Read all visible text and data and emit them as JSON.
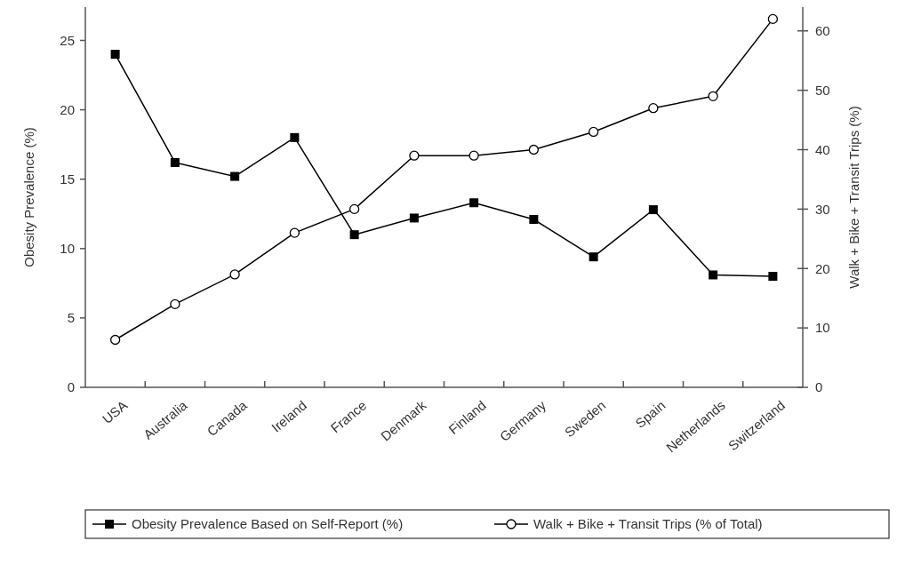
{
  "chart_data": {
    "type": "line",
    "categories": [
      "USA",
      "Australia",
      "Canada",
      "Ireland",
      "France",
      "Denmark",
      "Finland",
      "Germany",
      "Sweden",
      "Spain",
      "Netherlands",
      "Switzerland"
    ],
    "ylabel": "Obesity Prevalence (%)",
    "y2label": "Walk + Bike + Transit Trips (%)",
    "ylim": [
      0,
      27.4
    ],
    "yticks": [
      0,
      5,
      10,
      15,
      20,
      25
    ],
    "y2lim": [
      0,
      64
    ],
    "y2ticks": [
      0,
      10,
      20,
      30,
      40,
      50,
      60
    ],
    "legend": "bottom",
    "grid": false,
    "series": [
      {
        "name": "Obesity Prevalence Based on Self-Report (%)",
        "color": "#000000",
        "marker": "square",
        "values": [
          24,
          16.2,
          15.2,
          18,
          11,
          12.2,
          13.3,
          12.1,
          9.4,
          12.8,
          8.1,
          8
        ]
      },
      {
        "name": "Walk + Bike + Transit Trips (% of Total)",
        "color": "#000000",
        "marker": "circle",
        "axis": "y2",
        "values": [
          8,
          14,
          19,
          26,
          30,
          39,
          39,
          40,
          43,
          47,
          49,
          62
        ]
      }
    ]
  }
}
